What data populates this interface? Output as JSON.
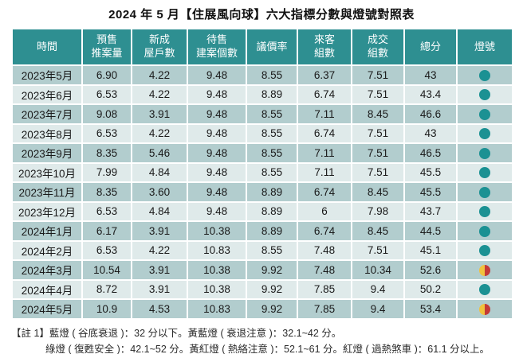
{
  "title": "2024 年 5 月【住展風向球】六大指標分數與燈號對照表",
  "colors": {
    "header_bg": "#2e8f91",
    "row_dark": "#b2cdce",
    "row_light": "#dfeaea",
    "light_green": "#1b9193",
    "light_yellow": "#f0c23d",
    "light_red": "#c43a36"
  },
  "table": {
    "columns": [
      "時間",
      "預售\n推案量",
      "新成\n屋戶數",
      "待售\n建案個數",
      "議價率",
      "來客\n組數",
      "成交\n組數",
      "總分",
      "燈號"
    ],
    "rows": [
      {
        "time": "2023年5月",
        "values": [
          "6.90",
          "4.22",
          "9.48",
          "8.55",
          "6.37",
          "7.51",
          "43"
        ],
        "light": "green"
      },
      {
        "time": "2023年6月",
        "values": [
          "6.53",
          "4.22",
          "9.48",
          "8.89",
          "6.74",
          "7.51",
          "43.4"
        ],
        "light": "green"
      },
      {
        "time": "2023年7月",
        "values": [
          "9.08",
          "3.91",
          "9.48",
          "8.55",
          "7.11",
          "8.45",
          "46.6"
        ],
        "light": "green"
      },
      {
        "time": "2023年8月",
        "values": [
          "6.53",
          "4.22",
          "9.48",
          "8.55",
          "6.74",
          "7.51",
          "43"
        ],
        "light": "green"
      },
      {
        "time": "2023年9月",
        "values": [
          "8.35",
          "5.46",
          "9.48",
          "8.55",
          "7.11",
          "7.51",
          "46.5"
        ],
        "light": "green"
      },
      {
        "time": "2023年10月",
        "values": [
          "7.99",
          "4.84",
          "9.48",
          "8.55",
          "7.11",
          "7.51",
          "45.5"
        ],
        "light": "green"
      },
      {
        "time": "2023年11月",
        "values": [
          "8.35",
          "3.60",
          "9.48",
          "8.89",
          "6.74",
          "8.45",
          "45.5"
        ],
        "light": "green"
      },
      {
        "time": "2023年12月",
        "values": [
          "6.53",
          "4.84",
          "9.48",
          "8.89",
          "6",
          "7.98",
          "43.7"
        ],
        "light": "green"
      },
      {
        "time": "2024年1月",
        "values": [
          "6.17",
          "3.91",
          "10.38",
          "8.89",
          "6.74",
          "8.45",
          "44.5"
        ],
        "light": "green"
      },
      {
        "time": "2024年2月",
        "values": [
          "6.53",
          "4.22",
          "10.83",
          "8.55",
          "7.48",
          "7.51",
          "45.1"
        ],
        "light": "green"
      },
      {
        "time": "2024年3月",
        "values": [
          "10.54",
          "3.91",
          "10.38",
          "9.92",
          "7.48",
          "10.34",
          "52.6"
        ],
        "light": "yellow_red"
      },
      {
        "time": "2024年4月",
        "values": [
          "8.72",
          "3.91",
          "10.38",
          "9.92",
          "7.85",
          "9.4",
          "50.2"
        ],
        "light": "green"
      },
      {
        "time": "2024年5月",
        "values": [
          "10.9",
          "4.53",
          "10.83",
          "9.92",
          "7.85",
          "9.4",
          "53.4"
        ],
        "light": "yellow_red"
      }
    ],
    "lights": {
      "green": "綠燈",
      "yellow_red": "黃紅燈"
    }
  },
  "footnotes": {
    "line1": "【註 1】藍燈 ( 谷底衰退 )：32 分以下。黃藍燈 ( 衰退注意 )：32.1~42 分。",
    "line2": "綠燈 ( 復甦安全 )：42.1~52 分。黃紅燈 ( 熱絡注意 )：52.1~61 分。紅燈 ( 過熱煞車 )：61.1 分以上。"
  },
  "chart_data": {
    "type": "table",
    "title": "2024 年 5 月【住展風向球】六大指標分數與燈號對照表",
    "columns": [
      "時間",
      "預售推案量",
      "新成屋戶數",
      "待售建案個數",
      "議價率",
      "來客組數",
      "成交組數",
      "總分",
      "燈號"
    ],
    "rows": [
      [
        "2023年5月",
        6.9,
        4.22,
        9.48,
        8.55,
        6.37,
        7.51,
        43,
        "綠燈"
      ],
      [
        "2023年6月",
        6.53,
        4.22,
        9.48,
        8.89,
        6.74,
        7.51,
        43.4,
        "綠燈"
      ],
      [
        "2023年7月",
        9.08,
        3.91,
        9.48,
        8.55,
        7.11,
        8.45,
        46.6,
        "綠燈"
      ],
      [
        "2023年8月",
        6.53,
        4.22,
        9.48,
        8.55,
        6.74,
        7.51,
        43,
        "綠燈"
      ],
      [
        "2023年9月",
        8.35,
        5.46,
        9.48,
        8.55,
        7.11,
        7.51,
        46.5,
        "綠燈"
      ],
      [
        "2023年10月",
        7.99,
        4.84,
        9.48,
        8.55,
        7.11,
        7.51,
        45.5,
        "綠燈"
      ],
      [
        "2023年11月",
        8.35,
        3.6,
        9.48,
        8.89,
        6.74,
        8.45,
        45.5,
        "綠燈"
      ],
      [
        "2023年12月",
        6.53,
        4.84,
        9.48,
        8.89,
        6,
        7.98,
        43.7,
        "綠燈"
      ],
      [
        "2024年1月",
        6.17,
        3.91,
        10.38,
        8.89,
        6.74,
        8.45,
        44.5,
        "綠燈"
      ],
      [
        "2024年2月",
        6.53,
        4.22,
        10.83,
        8.55,
        7.48,
        7.51,
        45.1,
        "綠燈"
      ],
      [
        "2024年3月",
        10.54,
        3.91,
        10.38,
        9.92,
        7.48,
        10.34,
        52.6,
        "黃紅燈"
      ],
      [
        "2024年4月",
        8.72,
        3.91,
        10.38,
        9.92,
        7.85,
        9.4,
        50.2,
        "綠燈"
      ],
      [
        "2024年5月",
        10.9,
        4.53,
        10.83,
        9.92,
        7.85,
        9.4,
        53.4,
        "黃紅燈"
      ]
    ],
    "legend": [
      {
        "label": "藍燈",
        "meaning": "谷底衰退",
        "range": "32 分以下"
      },
      {
        "label": "黃藍燈",
        "meaning": "衰退注意",
        "range": "32.1~42 分"
      },
      {
        "label": "綠燈",
        "meaning": "復甦安全",
        "range": "42.1~52 分"
      },
      {
        "label": "黃紅燈",
        "meaning": "熱絡注意",
        "range": "52.1~61 分"
      },
      {
        "label": "紅燈",
        "meaning": "過熱煞車",
        "range": "61.1 分以上"
      }
    ]
  }
}
